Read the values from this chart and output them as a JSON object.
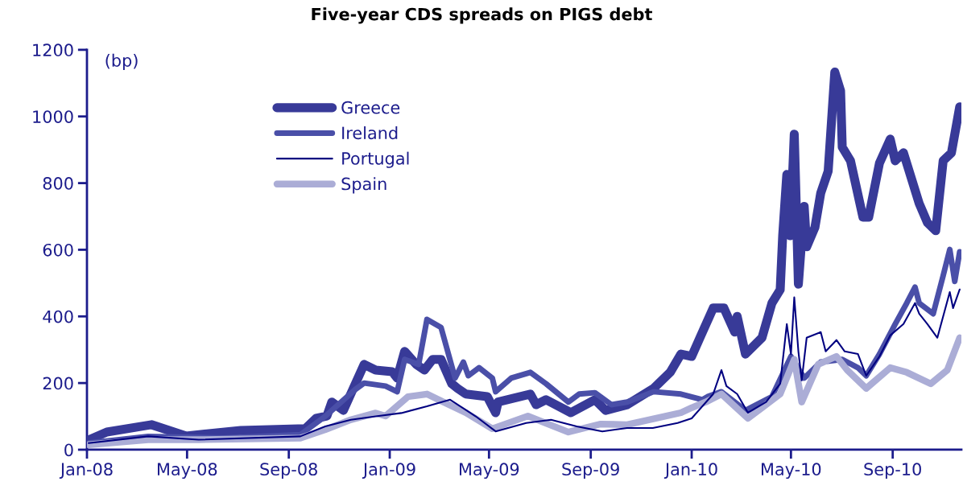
{
  "chart_data": {
    "type": "line",
    "title": "Five-year CDS spreads on PIGS debt",
    "ylabel": "(bp)",
    "xlim": [
      "2008-01-01",
      "2010-11-23"
    ],
    "ylim": [
      0,
      1200
    ],
    "yticks": [
      0,
      200,
      400,
      600,
      800,
      1000,
      1200
    ],
    "xticks": [
      {
        "value": "2008-01-01",
        "label": "Jan-08"
      },
      {
        "value": "2008-05-01",
        "label": "May-08"
      },
      {
        "value": "2008-09-01",
        "label": "Sep-08"
      },
      {
        "value": "2009-01-01",
        "label": "Jan-09"
      },
      {
        "value": "2009-05-01",
        "label": "May-09"
      },
      {
        "value": "2009-09-01",
        "label": "Sep-09"
      },
      {
        "value": "2010-01-01",
        "label": "Jan-10"
      },
      {
        "value": "2010-05-01",
        "label": "May-10"
      },
      {
        "value": "2010-09-01",
        "label": "Sep-10"
      }
    ],
    "grid": false,
    "legend": "top left",
    "marker": "none",
    "line_style": "solid",
    "series": [
      {
        "name": "Greece",
        "color": "#383a98",
        "x": [
          "2008-01-03",
          "2008-01-25",
          "2008-03-19",
          "2008-04-30",
          "2008-07-05",
          "2008-09-21",
          "2008-10-04",
          "2008-10-17",
          "2008-10-23",
          "2008-11-06",
          "2008-12-01",
          "2008-12-15",
          "2009-01-04",
          "2009-01-10",
          "2009-01-19",
          "2009-02-02",
          "2009-02-12",
          "2009-02-22",
          "2009-03-04",
          "2009-03-17",
          "2009-03-24",
          "2009-04-03",
          "2009-04-29",
          "2009-05-09",
          "2009-05-12",
          "2009-06-20",
          "2009-06-27",
          "2009-07-09",
          "2009-08-08",
          "2009-09-06",
          "2009-09-19",
          "2009-10-15",
          "2009-11-16",
          "2009-12-06",
          "2009-12-19",
          "2010-01-01",
          "2010-01-11",
          "2010-01-27",
          "2010-02-09",
          "2010-02-22",
          "2010-02-25",
          "2010-03-07",
          "2010-03-27",
          "2010-04-08",
          "2010-04-18",
          "2010-04-21",
          "2010-04-26",
          "2010-04-30",
          "2010-05-05",
          "2010-05-10",
          "2010-05-17",
          "2010-05-20",
          "2010-05-30",
          "2010-06-06",
          "2010-06-15",
          "2010-06-23",
          "2010-06-30",
          "2010-07-02",
          "2010-07-12",
          "2010-07-27",
          "2010-08-03",
          "2010-08-16",
          "2010-08-29",
          "2010-09-04",
          "2010-09-14",
          "2010-10-03",
          "2010-10-13",
          "2010-10-23",
          "2010-11-01",
          "2010-11-11",
          "2010-11-21"
        ],
        "values": [
          29,
          53,
          75,
          41,
          58,
          63,
          94,
          101,
          143,
          118,
          256,
          239,
          234,
          215,
          295,
          256,
          239,
          271,
          271,
          198,
          184,
          167,
          159,
          111,
          143,
          167,
          135,
          150,
          111,
          150,
          118,
          135,
          184,
          232,
          287,
          280,
          336,
          425,
          425,
          353,
          400,
          287,
          336,
          440,
          480,
          642,
          826,
          642,
          947,
          497,
          730,
          609,
          667,
          770,
          836,
          1133,
          1077,
          908,
          867,
          698,
          698,
          860,
          932,
          867,
          891,
          739,
          681,
          657,
          867,
          891,
          1029
        ]
      },
      {
        "name": "Ireland",
        "color": "#4a4fa8",
        "x": [
          "2008-01-03",
          "2008-03-15",
          "2008-06-15",
          "2008-09-15",
          "2008-10-15",
          "2008-11-20",
          "2008-12-01",
          "2008-12-27",
          "2009-01-10",
          "2009-01-19",
          "2009-02-05",
          "2009-02-15",
          "2009-03-04",
          "2009-03-21",
          "2009-03-31",
          "2009-04-06",
          "2009-04-19",
          "2009-05-05",
          "2009-05-09",
          "2009-05-28",
          "2009-06-20",
          "2009-07-09",
          "2009-08-05",
          "2009-08-18",
          "2009-09-06",
          "2009-09-26",
          "2009-10-15",
          "2009-11-16",
          "2009-12-19",
          "2010-01-14",
          "2010-01-20",
          "2010-02-06",
          "2010-03-07",
          "2010-04-08",
          "2010-05-01",
          "2010-05-17",
          "2010-06-06",
          "2010-07-02",
          "2010-07-21",
          "2010-07-31",
          "2010-08-16",
          "2010-09-04",
          "2010-09-18",
          "2010-09-28",
          "2010-10-03",
          "2010-10-20",
          "2010-11-01",
          "2010-11-09",
          "2010-11-15",
          "2010-11-21"
        ],
        "values": [
          20,
          40,
          35,
          45,
          100,
          180,
          200,
          191,
          174,
          271,
          256,
          391,
          367,
          215,
          263,
          222,
          246,
          215,
          174,
          215,
          232,
          198,
          143,
          167,
          171,
          135,
          143,
          174,
          167,
          150,
          159,
          174,
          118,
          159,
          280,
          215,
          263,
          271,
          246,
          222,
          287,
          377,
          440,
          488,
          440,
          408,
          522,
          601,
          505,
          594
        ]
      },
      {
        "name": "Portugal",
        "color": "#000080",
        "x": [
          "2008-01-03",
          "2008-03-15",
          "2008-05-15",
          "2008-09-15",
          "2008-10-15",
          "2008-11-15",
          "2008-12-15",
          "2009-01-15",
          "2009-02-15",
          "2009-03-15",
          "2009-04-15",
          "2009-05-09",
          "2009-06-15",
          "2009-07-15",
          "2009-08-15",
          "2009-09-15",
          "2009-10-15",
          "2009-11-15",
          "2009-12-15",
          "2010-01-01",
          "2010-01-27",
          "2010-02-06",
          "2010-02-12",
          "2010-02-25",
          "2010-03-10",
          "2010-04-01",
          "2010-04-18",
          "2010-04-26",
          "2010-05-01",
          "2010-05-05",
          "2010-05-10",
          "2010-05-14",
          "2010-05-20",
          "2010-06-06",
          "2010-06-12",
          "2010-06-25",
          "2010-07-05",
          "2010-07-21",
          "2010-07-31",
          "2010-08-16",
          "2010-08-29",
          "2010-09-14",
          "2010-09-28",
          "2010-10-03",
          "2010-10-13",
          "2010-10-25",
          "2010-11-09",
          "2010-11-13",
          "2010-11-21"
        ],
        "values": [
          20,
          40,
          30,
          40,
          70,
          90,
          100,
          110,
          130,
          150,
          100,
          55,
          80,
          90,
          70,
          55,
          65,
          65,
          80,
          94,
          167,
          239,
          191,
          167,
          111,
          143,
          198,
          377,
          287,
          457,
          295,
          208,
          336,
          353,
          295,
          329,
          295,
          287,
          222,
          280,
          343,
          377,
          440,
          408,
          377,
          336,
          473,
          425,
          481
        ]
      },
      {
        "name": "Spain",
        "color": "#abadd6",
        "x": [
          "2008-01-03",
          "2008-03-15",
          "2008-05-15",
          "2008-09-15",
          "2008-10-15",
          "2008-11-15",
          "2008-12-15",
          "2008-12-27",
          "2009-01-23",
          "2009-02-15",
          "2009-03-07",
          "2009-04-03",
          "2009-05-05",
          "2009-06-17",
          "2009-08-05",
          "2009-09-13",
          "2009-10-15",
          "2009-12-19",
          "2010-01-01",
          "2010-01-18",
          "2010-02-06",
          "2010-03-10",
          "2010-04-18",
          "2010-05-05",
          "2010-05-14",
          "2010-06-03",
          "2010-06-25",
          "2010-07-08",
          "2010-07-31",
          "2010-08-29",
          "2010-09-18",
          "2010-10-17",
          "2010-11-06",
          "2010-11-21"
        ],
        "values": [
          15,
          30,
          30,
          35,
          60,
          90,
          110,
          101,
          159,
          167,
          143,
          111,
          63,
          101,
          53,
          77,
          75,
          111,
          126,
          143,
          167,
          94,
          167,
          271,
          143,
          256,
          280,
          239,
          184,
          246,
          232,
          198,
          239,
          336
        ]
      }
    ]
  }
}
